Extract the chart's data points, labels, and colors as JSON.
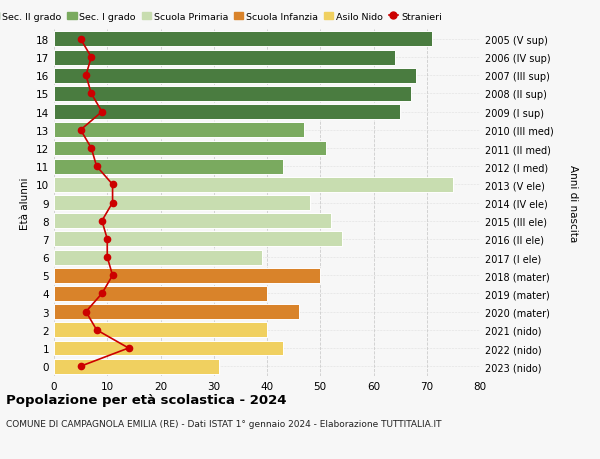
{
  "ages": [
    18,
    17,
    16,
    15,
    14,
    13,
    12,
    11,
    10,
    9,
    8,
    7,
    6,
    5,
    4,
    3,
    2,
    1,
    0
  ],
  "right_labels": [
    "2005 (V sup)",
    "2006 (IV sup)",
    "2007 (III sup)",
    "2008 (II sup)",
    "2009 (I sup)",
    "2010 (III med)",
    "2011 (II med)",
    "2012 (I med)",
    "2013 (V ele)",
    "2014 (IV ele)",
    "2015 (III ele)",
    "2016 (II ele)",
    "2017 (I ele)",
    "2018 (mater)",
    "2019 (mater)",
    "2020 (mater)",
    "2021 (nido)",
    "2022 (nido)",
    "2023 (nido)"
  ],
  "bar_values": [
    71,
    64,
    68,
    67,
    65,
    47,
    51,
    43,
    75,
    48,
    52,
    54,
    39,
    50,
    40,
    46,
    40,
    43,
    31
  ],
  "bar_colors": [
    "#4a7c40",
    "#4a7c40",
    "#4a7c40",
    "#4a7c40",
    "#4a7c40",
    "#7aaa5f",
    "#7aaa5f",
    "#7aaa5f",
    "#c8ddb0",
    "#c8ddb0",
    "#c8ddb0",
    "#c8ddb0",
    "#c8ddb0",
    "#d9832a",
    "#d9832a",
    "#d9832a",
    "#f0d060",
    "#f0d060",
    "#f0d060"
  ],
  "stranieri_values": [
    5,
    7,
    6,
    7,
    9,
    5,
    7,
    8,
    11,
    11,
    9,
    10,
    10,
    11,
    9,
    6,
    8,
    14,
    5
  ],
  "legend_labels": [
    "Sec. II grado",
    "Sec. I grado",
    "Scuola Primaria",
    "Scuola Infanzia",
    "Asilo Nido",
    "Stranieri"
  ],
  "legend_colors": [
    "#4a7c40",
    "#7aaa5f",
    "#c8ddb0",
    "#d9832a",
    "#f0d060",
    "#cc0000"
  ],
  "ylabel_left": "Età alunni",
  "ylabel_right": "Anni di nascita",
  "xlim": [
    0,
    80
  ],
  "xticks": [
    0,
    10,
    20,
    30,
    40,
    50,
    60,
    70,
    80
  ],
  "title": "Popolazione per età scolastica - 2024",
  "subtitle": "COMUNE DI CAMPAGNOLA EMILIA (RE) - Dati ISTAT 1° gennaio 2024 - Elaborazione TUTTITALIA.IT",
  "grid_color": "#cccccc",
  "bg_color": "#f7f7f7"
}
